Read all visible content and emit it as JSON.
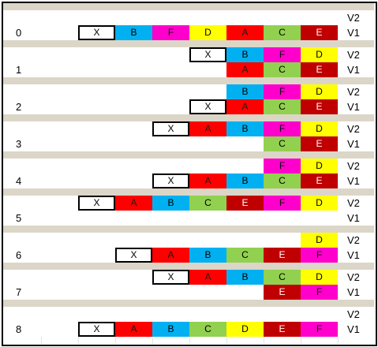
{
  "colors": {
    "A": "#ff0000",
    "B": "#00b0f0",
    "C": "#92d050",
    "D": "#ffff00",
    "E": "#c00000",
    "F": "#ff00cc",
    "X": "#ffffff",
    "separator": "#dcd6c8"
  },
  "steps": [
    {
      "label": "0",
      "rows": [
        {
          "version": "V2",
          "cells": []
        },
        {
          "version": "V1",
          "cells": [
            "X",
            "B",
            "F",
            "D",
            "A",
            "C",
            "E"
          ]
        }
      ]
    },
    {
      "label": "1",
      "rows": [
        {
          "version": "V2",
          "cells": [
            "X",
            "B",
            "F",
            "D"
          ]
        },
        {
          "version": "V1",
          "cells": [
            "A",
            "C",
            "E"
          ]
        }
      ]
    },
    {
      "label": "2",
      "rows": [
        {
          "version": "V2",
          "cells": [
            "B",
            "F",
            "D"
          ]
        },
        {
          "version": "V1",
          "cells": [
            "X",
            "A",
            "C",
            "E"
          ]
        }
      ]
    },
    {
      "label": "3",
      "rows": [
        {
          "version": "V2",
          "cells": [
            "X",
            "A",
            "B",
            "F",
            "D"
          ]
        },
        {
          "version": "V1",
          "cells": [
            "C",
            "E"
          ]
        }
      ]
    },
    {
      "label": "4",
      "rows": [
        {
          "version": "V2",
          "cells": [
            "F",
            "D"
          ]
        },
        {
          "version": "V1",
          "cells": [
            "X",
            "A",
            "B",
            "C",
            "E"
          ]
        }
      ]
    },
    {
      "label": "5",
      "rows": [
        {
          "version": "V2",
          "cells": [
            "X",
            "A",
            "B",
            "C",
            "E",
            "F",
            "D"
          ]
        },
        {
          "version": "V1",
          "cells": []
        }
      ]
    },
    {
      "label": "6",
      "rows": [
        {
          "version": "V2",
          "cells": [
            "D"
          ]
        },
        {
          "version": "V1",
          "cells": [
            "X",
            "A",
            "B",
            "C",
            "E",
            "F"
          ]
        }
      ]
    },
    {
      "label": "7",
      "rows": [
        {
          "version": "V2",
          "cells": [
            "X",
            "A",
            "B",
            "C",
            "D"
          ]
        },
        {
          "version": "V1",
          "cells": [
            "E",
            "F"
          ]
        }
      ]
    },
    {
      "label": "8",
      "rows": [
        {
          "version": "V2",
          "cells": []
        },
        {
          "version": "V1",
          "cells": [
            "X",
            "A",
            "B",
            "C",
            "D",
            "E",
            "F"
          ]
        }
      ]
    }
  ]
}
